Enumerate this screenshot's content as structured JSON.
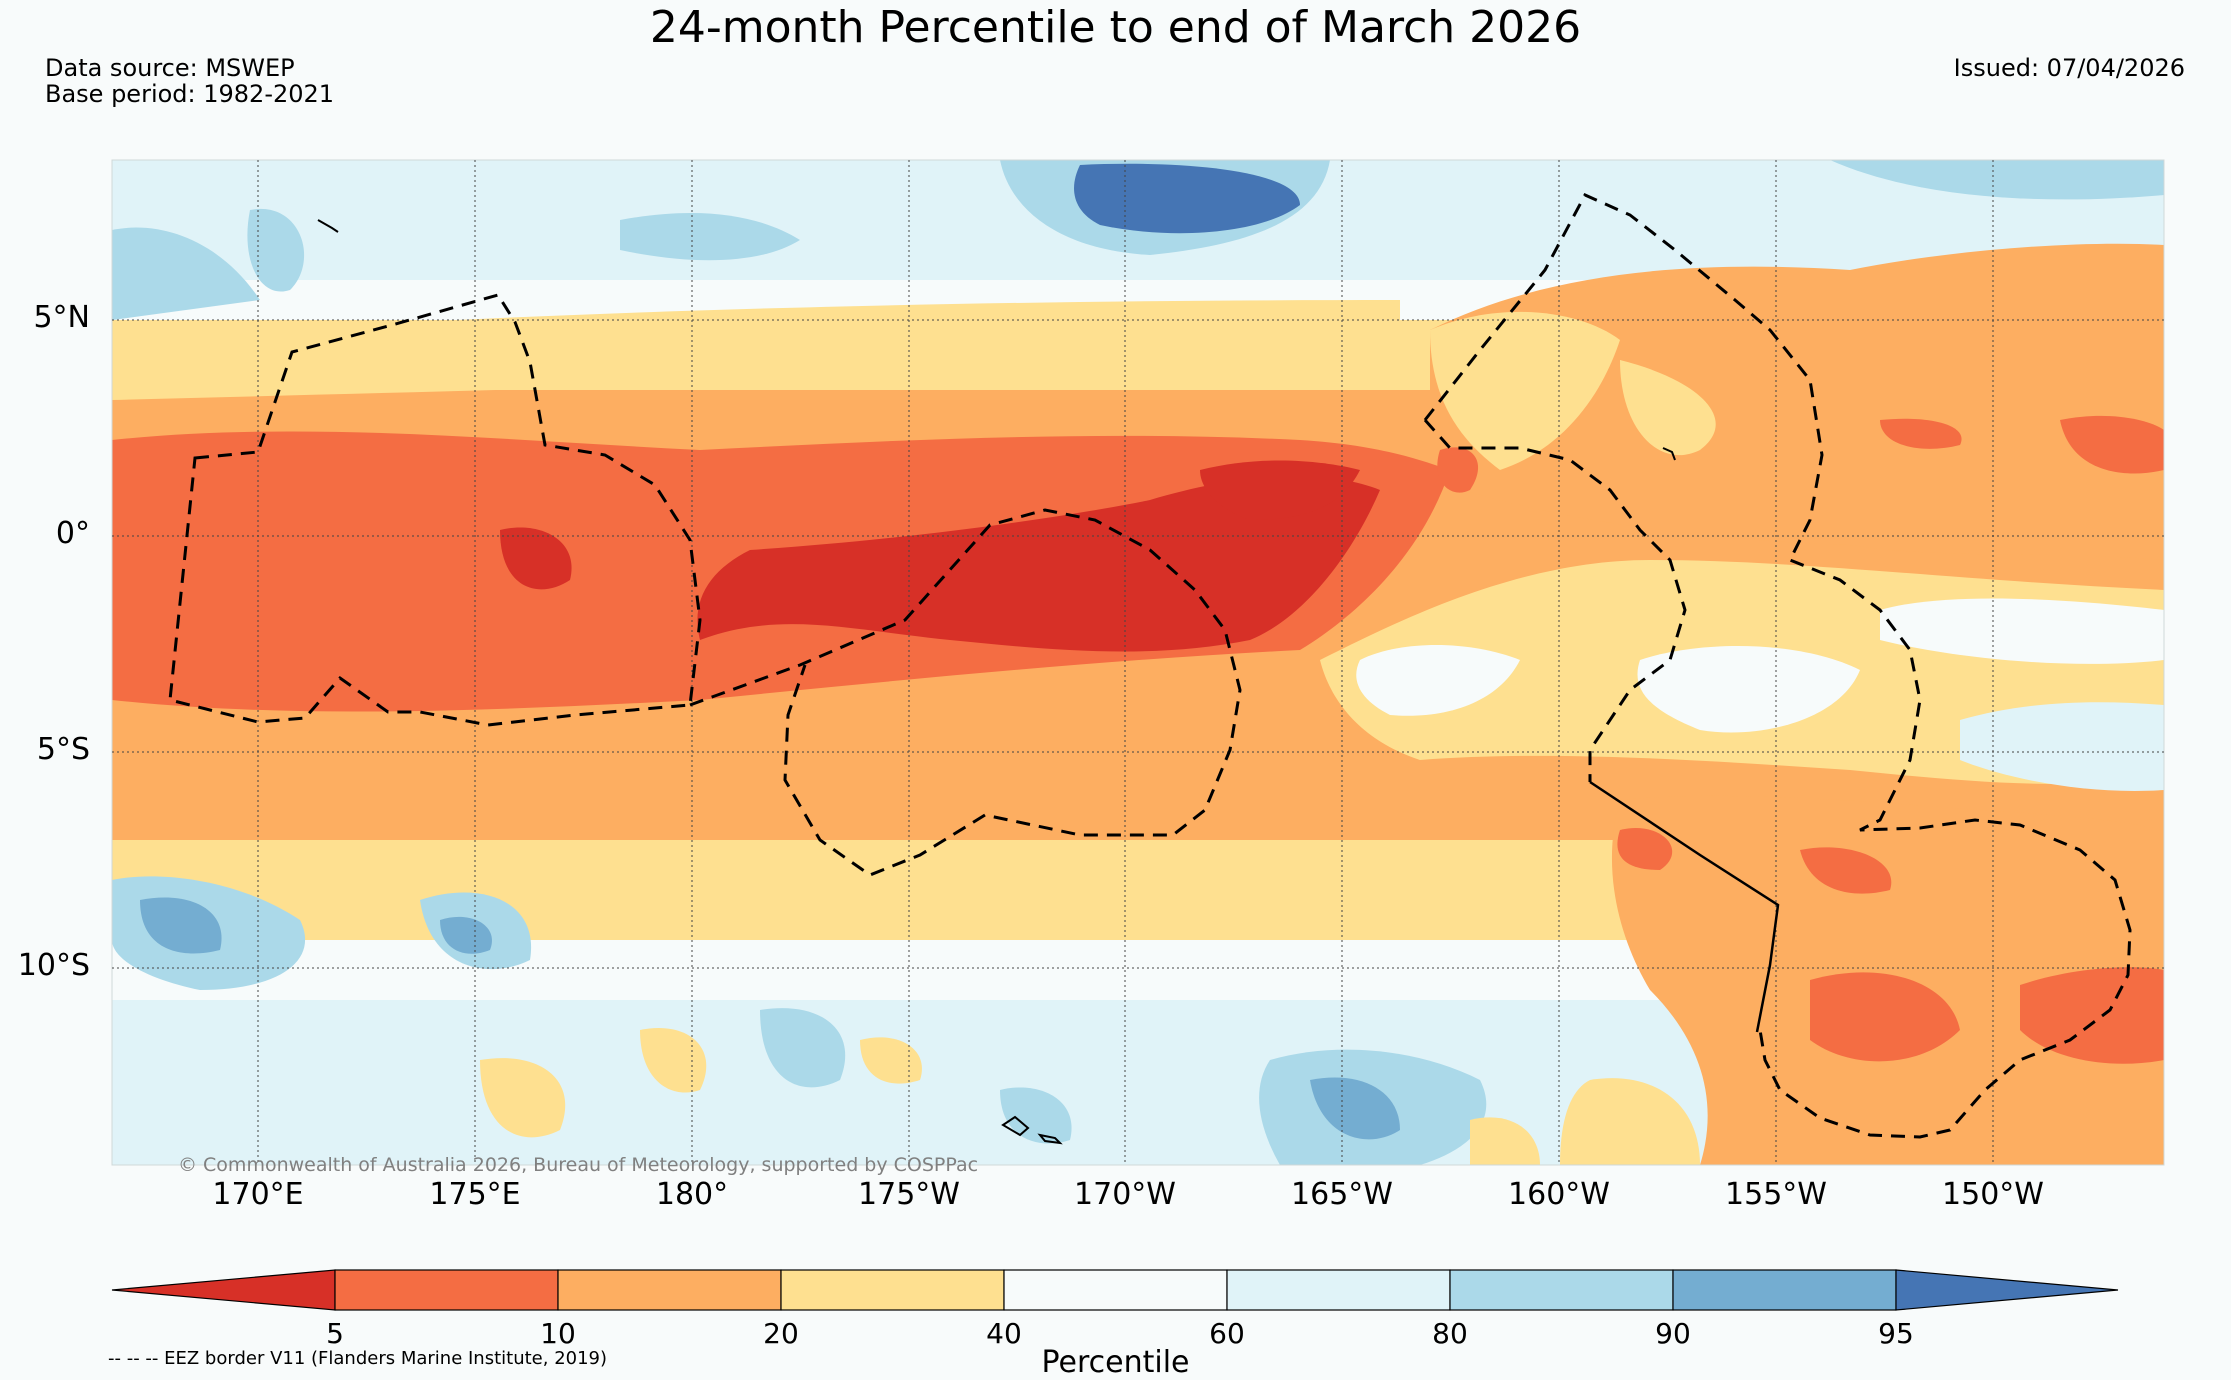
{
  "title": "24-month Percentile to end of March 2026",
  "data_source": "Data source: MSWEP",
  "base_period": "Base period: 1982-2021",
  "issued": "Issued: 07/04/2026",
  "copyright": "© Commonwealth of Australia 2026, Bureau of Meteorology, supported by COSPPac",
  "lat_labels": [
    "5°N",
    "0°",
    "5°S",
    "10°S"
  ],
  "lon_labels": [
    "170°E",
    "175°E",
    "180°",
    "175°W",
    "170°W",
    "165°W",
    "160°W",
    "155°W",
    "150°W"
  ],
  "colorbar": {
    "title": "Percentile",
    "ticks": [
      "5",
      "10",
      "20",
      "40",
      "60",
      "80",
      "90",
      "95"
    ],
    "colors": [
      "#d73027",
      "#f46d43",
      "#fdae61",
      "#fee090",
      "#f7fbfb",
      "#e0f3f8",
      "#abd9e9",
      "#74add1",
      "#4575b4"
    ]
  },
  "eez_note": "-- -- -- EEZ border V11 (Flanders Marine Institute, 2019)"
}
